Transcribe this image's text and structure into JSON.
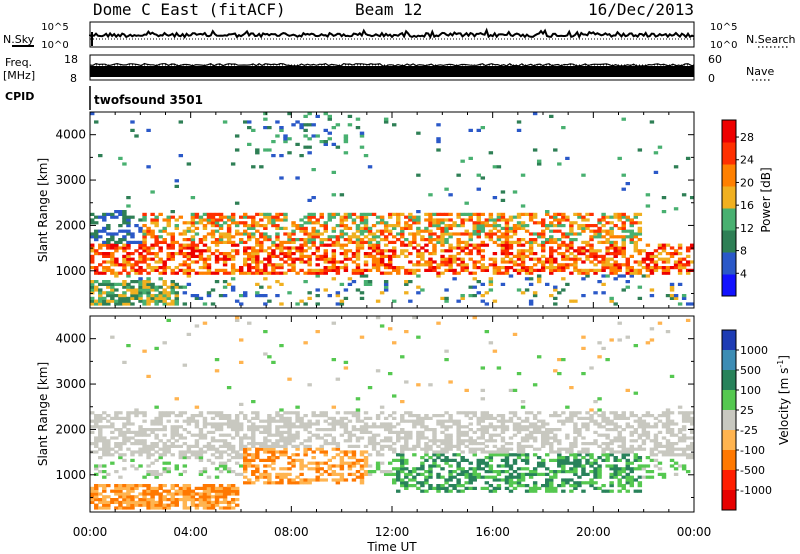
{
  "header": {
    "station": "Dome C East (fitACF)",
    "beam": "Beam 12",
    "date": "16/Dec/2013"
  },
  "top_panels": {
    "nsky": {
      "label": "N.Sky",
      "ticks": [
        "10^5",
        "10^0"
      ]
    },
    "nsearch": {
      "label": "N.Search",
      "ticks": [
        "10^5",
        "10^0"
      ]
    },
    "freq": {
      "label_line1": "Freq.",
      "label_line2": "[MHz]",
      "ticks": [
        "18",
        "8"
      ]
    },
    "nave": {
      "label": "Nave",
      "ticks": [
        "60",
        "0"
      ]
    },
    "cpid": {
      "label": "CPID",
      "value": "twofsound 3501"
    }
  },
  "chart_data": [
    {
      "type": "heatmap",
      "title": "",
      "quantity": "Power",
      "ylabel": "Slant Range [km]",
      "xlabel": "",
      "ylim": [
        180,
        4500
      ],
      "yticks": [
        1000,
        2000,
        3000,
        4000
      ],
      "colorbar": {
        "label": "Power [dB]",
        "range": [
          0,
          31
        ],
        "ticks": [
          4,
          8,
          12,
          16,
          20,
          24,
          28
        ],
        "colors": [
          "#1212ff",
          "#2a58c8",
          "#2e7f55",
          "#48b070",
          "#f0b020",
          "#ff8000",
          "#ff3000",
          "#ee0000"
        ]
      },
      "regions": [
        {
          "x": [
            0,
            3.5
          ],
          "y": [
            250,
            800
          ],
          "level": "8-16 dB"
        },
        {
          "x": [
            0,
            24
          ],
          "y": [
            900,
            1600
          ],
          "level": "20-28 dB"
        },
        {
          "x": [
            2,
            22
          ],
          "y": [
            1600,
            2300
          ],
          "level": "12-24 dB"
        },
        {
          "x": [
            0,
            3
          ],
          "y": [
            1300,
            2300
          ],
          "level": "4-8 dB"
        },
        {
          "x": [
            6,
            11
          ],
          "y": [
            3500,
            4500
          ],
          "level": "4-12 dB"
        }
      ]
    },
    {
      "type": "heatmap",
      "title": "",
      "quantity": "Velocity",
      "ylabel": "Slant Range [km]",
      "xlabel": "Time UT",
      "ylim": [
        180,
        4500
      ],
      "yticks": [
        1000,
        2000,
        3000,
        4000
      ],
      "colorbar": {
        "label": "Velocity [m s^-1]",
        "ticks": [
          "1000",
          "500",
          "100",
          "25",
          "-25",
          "-100",
          "-500",
          "-1000"
        ],
        "colors": [
          "#1e3cb4",
          "#3c8cb4",
          "#28825a",
          "#55c850",
          "#c8c8c0",
          "#ffb450",
          "#ff7800",
          "#ff1e00",
          "#e60000"
        ]
      },
      "regions": [
        {
          "x": [
            0,
            6
          ],
          "y": [
            250,
            800
          ],
          "level": "-100 to -500 m/s"
        },
        {
          "x": [
            6,
            11
          ],
          "y": [
            800,
            1600
          ],
          "level": "-100 to -500 m/s"
        },
        {
          "x": [
            12,
            22
          ],
          "y": [
            600,
            1500
          ],
          "level": "100 to 500 m/s"
        },
        {
          "x": [
            0,
            24
          ],
          "y": [
            1400,
            2400
          ],
          "level": "-25 to 25 m/s"
        }
      ]
    }
  ],
  "time_axis": {
    "ticks": [
      "00:00",
      "04:00",
      "08:00",
      "12:00",
      "16:00",
      "20:00",
      "00:00"
    ],
    "label": "Time UT"
  }
}
